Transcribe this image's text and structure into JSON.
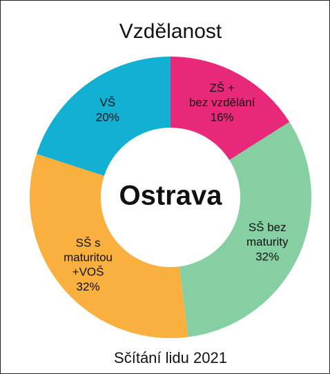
{
  "chart_data": {
    "type": "donut",
    "title": "Vzdělanost",
    "center_label": "Ostrava",
    "footer": "Sčítání lidu 2021",
    "categories": [
      "ZŠ +\nbez vzdělání",
      "SŠ bez\nmaturity",
      "SŠ s\nmaturitou\n+VOŠ",
      "VŠ"
    ],
    "values": [
      16,
      32,
      32,
      20
    ],
    "value_labels": [
      "16%",
      "32%",
      "32%",
      "20%"
    ],
    "colors": [
      "#e8297a",
      "#86cfa3",
      "#f9b03f",
      "#12b0d3"
    ]
  }
}
